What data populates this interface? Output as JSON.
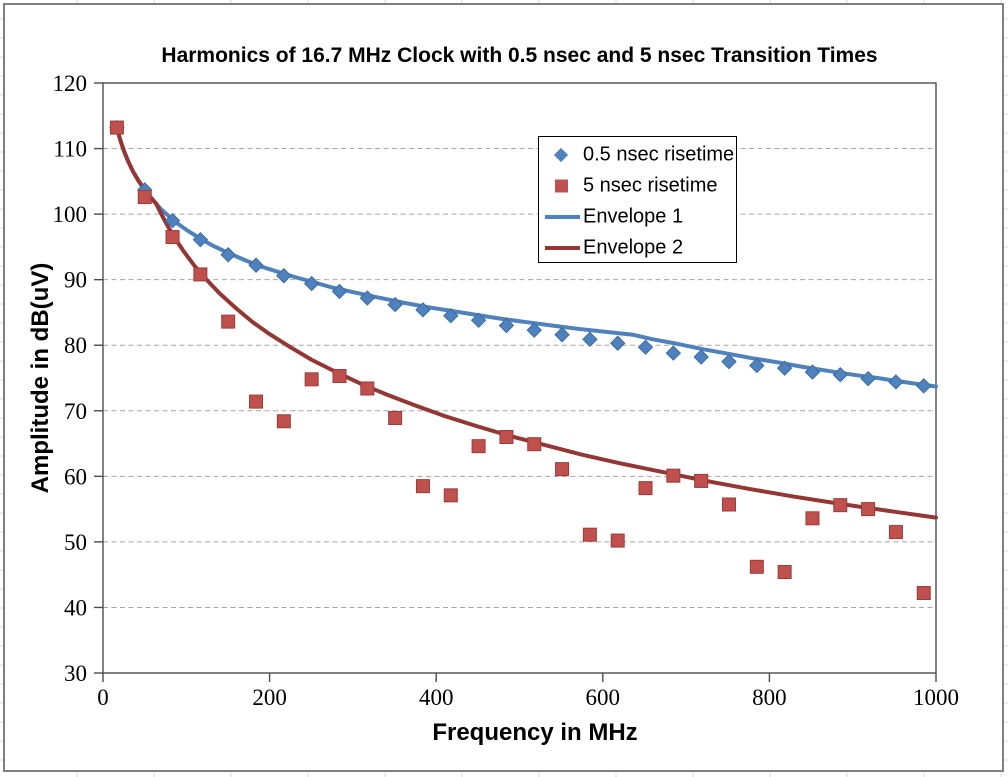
{
  "figure": {
    "background": "#FFFFFF",
    "border_color": "#7F7F7F"
  },
  "chart_data": {
    "type": "scatter",
    "title": "Harmonics of 16.7 MHz Clock with 0.5 nsec and 5 nsec Transition Times",
    "xlabel": "Frequency in MHz",
    "ylabel": "Amplitude in dB(uV)",
    "xlim": [
      0,
      1000
    ],
    "ylim": [
      30,
      120
    ],
    "xticks": [
      0,
      200,
      400,
      600,
      800,
      1000
    ],
    "yticks": [
      30,
      40,
      50,
      60,
      70,
      80,
      90,
      100,
      110,
      120
    ],
    "grid": {
      "horizontal": true,
      "style": "dashed",
      "color": "#A6A6A6"
    },
    "axis_color": "#4D4D4D",
    "legend_position": "inside-upper-middle",
    "series": [
      {
        "name": "0.5 nsec risetime",
        "kind": "scatter",
        "marker": "diamond",
        "color": "#4F81BD",
        "edge": "#3A6BA5",
        "x": [
          16.7,
          50.1,
          83.5,
          116.9,
          150.3,
          183.7,
          217.1,
          250.5,
          283.9,
          317.3,
          350.7,
          384.1,
          417.5,
          450.9,
          484.3,
          517.7,
          551.1,
          584.5,
          617.9,
          651.3,
          684.7,
          718.1,
          751.5,
          784.9,
          818.3,
          851.7,
          885.1,
          918.5,
          951.9,
          985.3
        ],
        "y": [
          113.2,
          103.7,
          99.0,
          96.1,
          93.8,
          92.2,
          90.6,
          89.4,
          88.2,
          87.2,
          86.2,
          85.4,
          84.5,
          83.8,
          83.0,
          82.3,
          81.6,
          80.9,
          80.3,
          79.7,
          78.8,
          78.2,
          77.5,
          76.9,
          76.5,
          75.9,
          75.5,
          74.9,
          74.4,
          73.8
        ]
      },
      {
        "name": "5 nsec risetime",
        "kind": "scatter",
        "marker": "square",
        "color": "#C0504D",
        "edge": "#9A3C39",
        "x": [
          16.7,
          50.1,
          83.5,
          116.9,
          150.3,
          183.7,
          217.1,
          250.5,
          283.9,
          317.3,
          350.7,
          384.1,
          417.5,
          450.9,
          484.3,
          517.7,
          551.1,
          584.5,
          617.9,
          651.3,
          684.7,
          718.1,
          751.5,
          784.9,
          818.3,
          851.7,
          885.1,
          918.5,
          951.9,
          985.3
        ],
        "y": [
          113.2,
          102.6,
          96.5,
          90.8,
          83.6,
          71.4,
          68.4,
          74.8,
          75.3,
          73.4,
          68.9,
          58.5,
          57.1,
          64.6,
          66.0,
          64.9,
          61.1,
          51.1,
          50.2,
          58.2,
          60.1,
          59.3,
          55.7,
          46.2,
          45.4,
          53.6,
          55.6,
          55.0,
          51.5,
          42.2
        ]
      },
      {
        "name": "Envelope 1",
        "kind": "line",
        "color": "#4F81BD",
        "width": 4,
        "points": [
          [
            16.7,
            113.2
          ],
          [
            20,
            111.6
          ],
          [
            25,
            109.7
          ],
          [
            30,
            108.1
          ],
          [
            36,
            106.5
          ],
          [
            43,
            105.0
          ],
          [
            50,
            103.7
          ],
          [
            60,
            102.1
          ],
          [
            70,
            100.7
          ],
          [
            80,
            99.6
          ],
          [
            90,
            98.5
          ],
          [
            100,
            97.6
          ],
          [
            115,
            96.4
          ],
          [
            130,
            95.3
          ],
          [
            150,
            94.1
          ],
          [
            170,
            93.0
          ],
          [
            190,
            92.0
          ],
          [
            210,
            91.2
          ],
          [
            230,
            90.4
          ],
          [
            250,
            89.7
          ],
          [
            275,
            88.8
          ],
          [
            300,
            88.1
          ],
          [
            330,
            87.3
          ],
          [
            360,
            86.5
          ],
          [
            390,
            85.8
          ],
          [
            420,
            85.2
          ],
          [
            450,
            84.6
          ],
          [
            480,
            84.0
          ],
          [
            510,
            83.5
          ],
          [
            540,
            83.0
          ],
          [
            570,
            82.5
          ],
          [
            600,
            82.1
          ],
          [
            636,
            81.6
          ],
          [
            660,
            80.9
          ],
          [
            690,
            80.2
          ],
          [
            720,
            79.4
          ],
          [
            750,
            78.7
          ],
          [
            780,
            78.0
          ],
          [
            810,
            77.4
          ],
          [
            840,
            76.7
          ],
          [
            870,
            76.1
          ],
          [
            900,
            75.5
          ],
          [
            930,
            75.0
          ],
          [
            960,
            74.4
          ],
          [
            1000,
            73.7
          ]
        ]
      },
      {
        "name": "Envelope 2",
        "kind": "line",
        "color": "#943634",
        "width": 4,
        "points": [
          [
            16.7,
            113.2
          ],
          [
            20,
            111.6
          ],
          [
            25,
            109.7
          ],
          [
            30,
            108.1
          ],
          [
            36,
            106.5
          ],
          [
            43,
            105.0
          ],
          [
            50,
            103.7
          ],
          [
            57,
            102.6
          ],
          [
            63.7,
            101.6
          ],
          [
            70,
            100.0
          ],
          [
            78,
            98.1
          ],
          [
            87,
            96.2
          ],
          [
            97,
            94.3
          ],
          [
            110,
            92.1
          ],
          [
            125,
            89.9
          ],
          [
            140,
            87.9
          ],
          [
            160,
            85.6
          ],
          [
            180,
            83.5
          ],
          [
            200,
            81.7
          ],
          [
            225,
            79.7
          ],
          [
            250,
            77.8
          ],
          [
            280,
            75.9
          ],
          [
            310,
            74.1
          ],
          [
            340,
            72.5
          ],
          [
            375,
            70.8
          ],
          [
            410,
            69.2
          ],
          [
            450,
            67.6
          ],
          [
            490,
            66.1
          ],
          [
            530,
            64.8
          ],
          [
            575,
            63.3
          ],
          [
            620,
            62.0
          ],
          [
            670,
            60.7
          ],
          [
            720,
            59.4
          ],
          [
            775,
            58.1
          ],
          [
            830,
            56.9
          ],
          [
            890,
            55.7
          ],
          [
            950,
            54.6
          ],
          [
            1000,
            53.7
          ]
        ]
      }
    ]
  }
}
